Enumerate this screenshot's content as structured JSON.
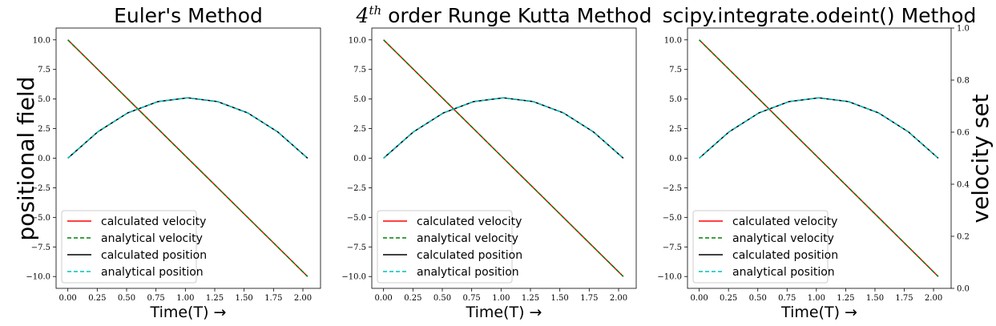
{
  "figure": {
    "left_ylabel": "positional field",
    "right_ylabel": "velocity set",
    "right_axis_ylim": [
      0.0,
      1.0
    ],
    "right_axis_ticks": [
      0.0,
      0.2,
      0.4,
      0.6,
      0.8,
      1.0
    ],
    "right_axis_tick_labels": [
      "0.0",
      "0.2",
      "0.4",
      "0.6",
      "0.8",
      "1.0"
    ]
  },
  "colors": {
    "calculated_velocity": "#ff0000",
    "analytical_velocity": "#008000",
    "calculated_position": "#000000",
    "analytical_position": "#00bfbf"
  },
  "chart_data": [
    {
      "type": "line",
      "title": "Euler's Method",
      "title_parts": [],
      "xlabel": "Time(T) →",
      "ylabel": "positional field",
      "xlim": [
        -0.1,
        2.15
      ],
      "ylim": [
        -11.0,
        11.0
      ],
      "xticks": [
        0.0,
        0.25,
        0.5,
        0.75,
        1.0,
        1.25,
        1.5,
        1.75,
        2.0
      ],
      "xtick_labels": [
        "0.00",
        "0.25",
        "0.50",
        "0.75",
        "1.00",
        "1.25",
        "1.50",
        "1.75",
        "2.00"
      ],
      "yticks": [
        -10.0,
        -7.5,
        -5.0,
        -2.5,
        0.0,
        2.5,
        5.0,
        7.5,
        10.0
      ],
      "ytick_labels": [
        "−10.0",
        "−7.5",
        "−5.0",
        "−2.5",
        "0.0",
        "2.5",
        "5.0",
        "7.5",
        "10.0"
      ],
      "legend_position": "lower-left",
      "series": [
        {
          "name": "calculated velocity",
          "style": "solid",
          "x": [
            0.0,
            2.04
          ],
          "y": [
            10.0,
            -10.0
          ]
        },
        {
          "name": "analytical velocity",
          "style": "dashed",
          "x": [
            0.0,
            2.04
          ],
          "y": [
            10.0,
            -10.0
          ]
        },
        {
          "name": "calculated position",
          "style": "solid",
          "x": [
            0.0,
            0.255,
            0.51,
            0.765,
            1.02,
            1.275,
            1.53,
            1.785,
            2.04
          ],
          "y": [
            0.0,
            2.23,
            3.83,
            4.78,
            5.1,
            4.78,
            3.83,
            2.23,
            0.0
          ]
        },
        {
          "name": "analytical position",
          "style": "dashed",
          "x": [
            0.0,
            0.255,
            0.51,
            0.765,
            1.02,
            1.275,
            1.53,
            1.785,
            2.04
          ],
          "y": [
            0.0,
            2.23,
            3.83,
            4.78,
            5.1,
            4.78,
            3.83,
            2.23,
            0.0
          ]
        }
      ]
    },
    {
      "type": "line",
      "title": "",
      "title_parts": [
        "4",
        "th",
        " order Runge Kutta Method"
      ],
      "xlabel": "Time(T) →",
      "ylabel": "",
      "xlim": [
        -0.1,
        2.15
      ],
      "ylim": [
        -11.0,
        11.0
      ],
      "xticks": [
        0.0,
        0.25,
        0.5,
        0.75,
        1.0,
        1.25,
        1.5,
        1.75,
        2.0
      ],
      "xtick_labels": [
        "0.00",
        "0.25",
        "0.50",
        "0.75",
        "1.00",
        "1.25",
        "1.50",
        "1.75",
        "2.00"
      ],
      "yticks": [
        -10.0,
        -7.5,
        -5.0,
        -2.5,
        0.0,
        2.5,
        5.0,
        7.5,
        10.0
      ],
      "ytick_labels": [
        "−10.0",
        "−7.5",
        "−5.0",
        "−2.5",
        "0.0",
        "2.5",
        "5.0",
        "7.5",
        "10.0"
      ],
      "legend_position": "lower-left",
      "series": [
        {
          "name": "calculated velocity",
          "style": "solid",
          "x": [
            0.0,
            2.04
          ],
          "y": [
            10.0,
            -10.0
          ]
        },
        {
          "name": "analytical velocity",
          "style": "dashed",
          "x": [
            0.0,
            2.04
          ],
          "y": [
            10.0,
            -10.0
          ]
        },
        {
          "name": "calculated position",
          "style": "solid",
          "x": [
            0.0,
            0.255,
            0.51,
            0.765,
            1.02,
            1.275,
            1.53,
            1.785,
            2.04
          ],
          "y": [
            0.0,
            2.23,
            3.83,
            4.78,
            5.1,
            4.78,
            3.83,
            2.23,
            0.0
          ]
        },
        {
          "name": "analytical position",
          "style": "dashed",
          "x": [
            0.0,
            0.255,
            0.51,
            0.765,
            1.02,
            1.275,
            1.53,
            1.785,
            2.04
          ],
          "y": [
            0.0,
            2.23,
            3.83,
            4.78,
            5.1,
            4.78,
            3.83,
            2.23,
            0.0
          ]
        }
      ]
    },
    {
      "type": "line",
      "title": "scipy.integrate.odeint() Method",
      "title_parts": [],
      "xlabel": "Time(T) →",
      "ylabel": "velocity set",
      "xlim": [
        -0.1,
        2.15
      ],
      "ylim": [
        -11.0,
        11.0
      ],
      "xticks": [
        0.0,
        0.25,
        0.5,
        0.75,
        1.0,
        1.25,
        1.5,
        1.75,
        2.0
      ],
      "xtick_labels": [
        "0.00",
        "0.25",
        "0.50",
        "0.75",
        "1.00",
        "1.25",
        "1.50",
        "1.75",
        "2.00"
      ],
      "yticks": [
        -10.0,
        -7.5,
        -5.0,
        -2.5,
        0.0,
        2.5,
        5.0,
        7.5,
        10.0
      ],
      "ytick_labels": [
        "−10.0",
        "−7.5",
        "−5.0",
        "−2.5",
        "0.0",
        "2.5",
        "5.0",
        "7.5",
        "10.0"
      ],
      "legend_position": "lower-left",
      "series": [
        {
          "name": "calculated velocity",
          "style": "solid",
          "x": [
            0.0,
            2.04
          ],
          "y": [
            10.0,
            -10.0
          ]
        },
        {
          "name": "analytical velocity",
          "style": "dashed",
          "x": [
            0.0,
            2.04
          ],
          "y": [
            10.0,
            -10.0
          ]
        },
        {
          "name": "calculated position",
          "style": "solid",
          "x": [
            0.0,
            0.255,
            0.51,
            0.765,
            1.02,
            1.275,
            1.53,
            1.785,
            2.04
          ],
          "y": [
            0.0,
            2.23,
            3.83,
            4.78,
            5.1,
            4.78,
            3.83,
            2.23,
            0.0
          ]
        },
        {
          "name": "analytical position",
          "style": "dashed",
          "x": [
            0.0,
            0.255,
            0.51,
            0.765,
            1.02,
            1.275,
            1.53,
            1.785,
            2.04
          ],
          "y": [
            0.0,
            2.23,
            3.83,
            4.78,
            5.1,
            4.78,
            3.83,
            2.23,
            0.0
          ]
        }
      ]
    }
  ]
}
